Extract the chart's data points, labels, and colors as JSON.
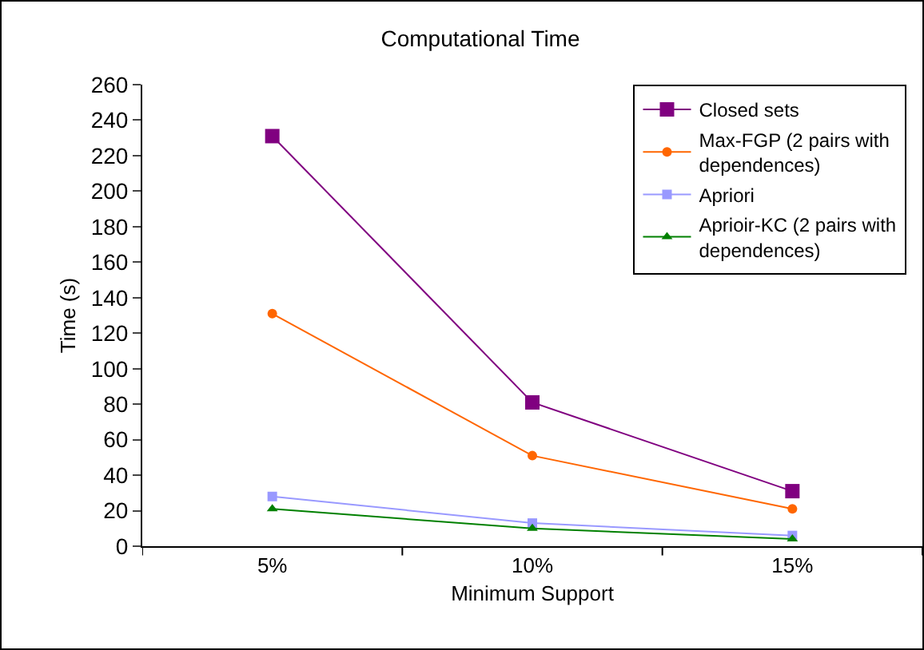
{
  "chart_data": {
    "type": "line",
    "title": "Computational Time",
    "xlabel": "Minimum Support",
    "ylabel": "Time (s)",
    "categories": [
      "5%",
      "10%",
      "15%"
    ],
    "series": [
      {
        "name": "Closed sets",
        "color": "#800080",
        "marker": "square",
        "values": [
          231,
          81,
          31
        ]
      },
      {
        "name": "Max-FGP (2 pairs with dependences)",
        "color": "#ff6600",
        "marker": "circle",
        "values": [
          131,
          51,
          21
        ]
      },
      {
        "name": "Apriori",
        "color": "#9999ff",
        "marker": "square",
        "values": [
          28,
          13,
          6
        ]
      },
      {
        "name": "Aprioir-KC (2 pairs with dependences)",
        "color": "#008000",
        "marker": "triangle",
        "values": [
          21,
          10,
          4
        ]
      }
    ],
    "ylim": [
      0,
      260
    ],
    "yticks": [
      0,
      20,
      40,
      60,
      80,
      100,
      120,
      140,
      160,
      180,
      200,
      220,
      240,
      260
    ],
    "grid": false,
    "legend": "top right",
    "line_style": "solid"
  }
}
